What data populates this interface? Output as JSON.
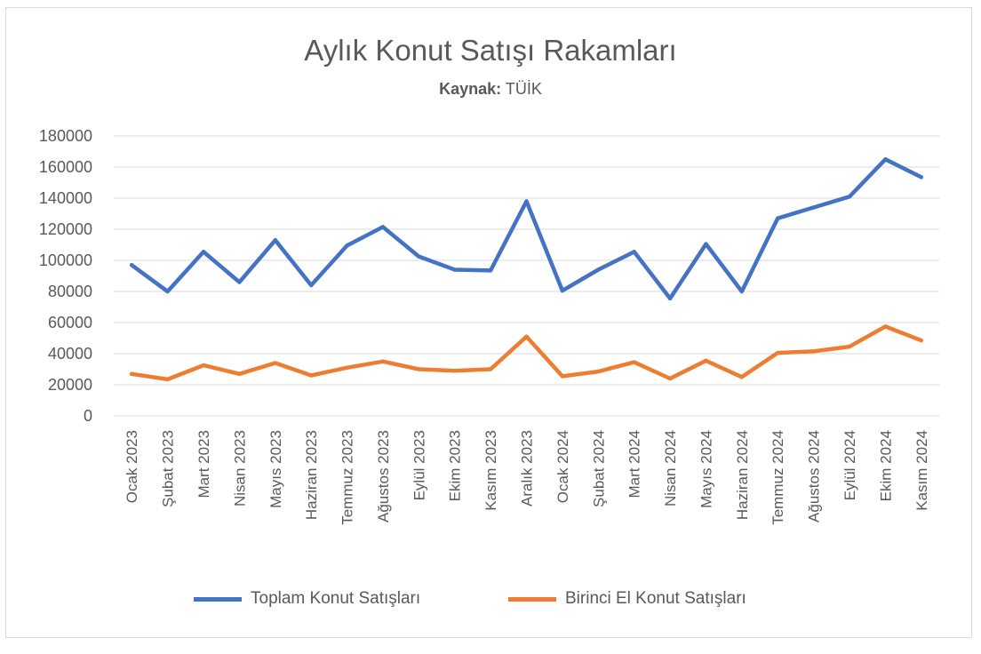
{
  "chart_data": {
    "type": "line",
    "title": "Aylık Konut Satışı Rakamları",
    "subtitle_label": "Kaynak:",
    "subtitle_value": "TÜİK",
    "xlabel": "",
    "ylabel": "",
    "ylim": [
      0,
      180000
    ],
    "yticks": [
      "0",
      "20000",
      "40000",
      "60000",
      "80000",
      "100000",
      "120000",
      "140000",
      "160000",
      "180000"
    ],
    "grid": true,
    "legend_position": "bottom",
    "categories": [
      "Ocak 2023",
      "Şubat 2023",
      "Mart 2023",
      "Nisan 2023",
      "Mayıs 2023",
      "Haziran 2023",
      "Temmuz 2023",
      "Ağustos 2023",
      "Eylül 2023",
      "Ekim 2023",
      "Kasım 2023",
      "Aralık 2023",
      "Ocak 2024",
      "Şubat 2024",
      "Mart 2024",
      "Nisan 2024",
      "Mayıs 2024",
      "Haziran 2024",
      "Temmuz 2024",
      "Ağustos 2024",
      "Eylül 2024",
      "Ekim 2024",
      "Kasım 2024"
    ],
    "series": [
      {
        "name": "Toplam Konut Satışları",
        "color": "#4472c4",
        "values": [
          97000,
          80000,
          105500,
          86000,
          113000,
          84000,
          109500,
          121500,
          102500,
          94000,
          93500,
          138000,
          80500,
          94000,
          105500,
          75500,
          110500,
          80000,
          127000,
          134000,
          141000,
          165000,
          153500
        ]
      },
      {
        "name": "Birinci El Konut Satışları",
        "color": "#ed7d31",
        "values": [
          27000,
          23500,
          32500,
          27000,
          34000,
          26000,
          31000,
          35000,
          30000,
          29000,
          30000,
          51000,
          25500,
          28500,
          34500,
          24000,
          35500,
          25000,
          40500,
          41500,
          44500,
          57500,
          48500
        ]
      }
    ]
  }
}
